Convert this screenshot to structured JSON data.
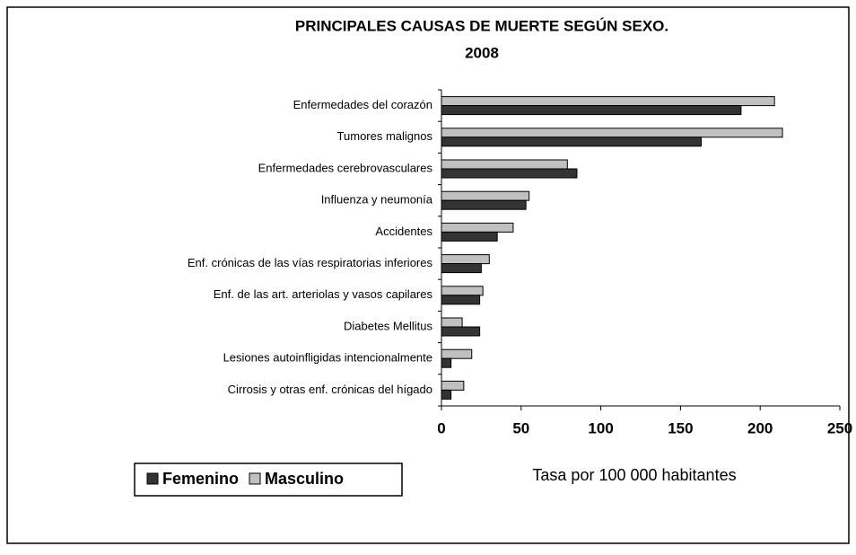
{
  "chart_data": {
    "type": "barh",
    "title": "PRINCIPALES CAUSAS DE MUERTE SEGÚN SEXO.",
    "subtitle": "2008",
    "x_label": "Tasa por 100 000 habitantes",
    "categories": [
      "Enfermedades del corazón",
      "Tumores malignos",
      "Enfermedades cerebrovasculares",
      "Influenza y neumonía",
      "Accidentes",
      "Enf. crónicas de las vías respiratorias inferiores",
      "Enf. de las art. arteriolas y vasos capilares",
      "Diabetes Mellitus",
      "Lesiones autoinfligidas intencionalmente",
      "Cirrosis y otras enf. crónicas del hígado"
    ],
    "series": [
      {
        "name": "Femenino",
        "color": "#333333",
        "values": [
          188,
          163,
          85,
          53,
          35,
          25,
          24,
          24,
          6,
          6
        ]
      },
      {
        "name": "Masculino",
        "color": "#c0c0c0",
        "values": [
          209,
          214,
          79,
          55,
          45,
          30,
          26,
          13,
          19,
          14
        ]
      }
    ],
    "xlim": [
      0,
      250
    ],
    "xticks": [
      0,
      50,
      100,
      150,
      200,
      250
    ],
    "grid": false,
    "legend": "bottom-left"
  }
}
